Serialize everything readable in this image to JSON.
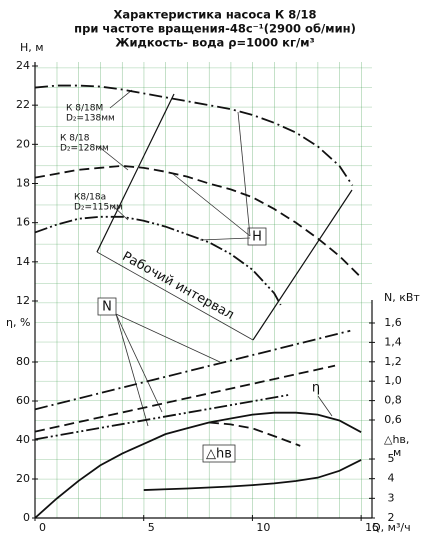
{
  "chart_data": {
    "type": "line",
    "title_lines": [
      "Характеристика насоса К 8/18",
      "при частоте вращения-48с⁻¹(2900 об/мин)",
      "Жидкость- вода ρ=1000 кг/м³"
    ],
    "xlabel": "Q, м³/ч",
    "ylabel": "H, м",
    "y_eta_label": "η, %",
    "y2label": "N, кВт",
    "y3label": "△hв,",
    "y3unit": "м",
    "xlim": [
      0,
      15.5
    ],
    "xticks": [
      0,
      5,
      10,
      15
    ],
    "ylim": [
      12,
      24
    ],
    "yticks": [
      12,
      14,
      16,
      18,
      20,
      22,
      24
    ],
    "y_eta_lim": [
      0,
      80
    ],
    "y_eta_ticks": [
      0,
      20,
      40,
      60,
      80
    ],
    "y2lim": [
      0.6,
      1.6
    ],
    "y2ticks": [
      {
        "value": 0.6,
        "label": "0,6"
      },
      {
        "value": 0.8,
        "label": "0,8"
      },
      {
        "value": 1.0,
        "label": "1,0"
      },
      {
        "value": 1.2,
        "label": "1,2"
      },
      {
        "value": 1.4,
        "label": "1,4"
      },
      {
        "value": 1.6,
        "label": "1,6"
      }
    ],
    "y3lim": [
      2,
      5
    ],
    "y3ticks": [
      2,
      3,
      4,
      5
    ],
    "grid": true,
    "grid_color": "#3a9a4a",
    "series": [
      {
        "name": "К 8/18М",
        "impeller": "D₂=138мм",
        "axis": "y",
        "style": "dashdot",
        "color": "#111",
        "x": [
          0,
          1,
          2,
          3,
          4,
          5,
          6,
          7,
          8,
          9,
          10,
          11,
          12,
          13,
          14,
          14.6
        ],
        "values": [
          22.9,
          23.0,
          23.0,
          22.95,
          22.8,
          22.6,
          22.4,
          22.2,
          22.0,
          21.8,
          21.5,
          21.1,
          20.6,
          19.9,
          18.9,
          17.9
        ]
      },
      {
        "name": "К 8/18",
        "impeller": "D₂=128мм",
        "axis": "y",
        "style": "dash",
        "color": "#111",
        "x": [
          0,
          1,
          2,
          3,
          4,
          5,
          6,
          7,
          8,
          9,
          10,
          11,
          12,
          13,
          14,
          15
        ],
        "values": [
          18.3,
          18.5,
          18.7,
          18.8,
          18.9,
          18.8,
          18.6,
          18.35,
          18.0,
          17.7,
          17.3,
          16.7,
          16.0,
          15.2,
          14.3,
          13.2
        ]
      },
      {
        "name": "К8/18а",
        "impeller": "D₂=115мм",
        "axis": "y",
        "style": "dashdotdot",
        "color": "#111",
        "x": [
          0,
          1,
          2,
          3,
          4,
          5,
          6,
          7,
          8,
          9,
          10,
          11,
          11.3
        ],
        "values": [
          15.5,
          15.9,
          16.2,
          16.3,
          16.3,
          16.1,
          15.8,
          15.4,
          15.0,
          14.4,
          13.6,
          12.4,
          11.8
        ]
      },
      {
        "axis": "y2",
        "style": "dashdot",
        "color": "#111",
        "x": [
          0,
          14.5
        ],
        "values": [
          0.71,
          1.52
        ]
      },
      {
        "axis": "y2",
        "style": "dash",
        "color": "#111",
        "x": [
          0,
          13.8
        ],
        "values": [
          0.48,
          1.16
        ]
      },
      {
        "axis": "y2",
        "style": "dashdotdot",
        "color": "#111",
        "x": [
          0,
          11.7
        ],
        "values": [
          0.4,
          0.86
        ]
      },
      {
        "name": "η",
        "axis": "eta",
        "style": "solid",
        "color": "#111",
        "x": [
          0,
          1,
          2,
          3,
          4,
          5,
          6,
          7,
          8,
          9,
          10,
          11,
          12,
          13,
          14,
          15
        ],
        "values": [
          0,
          10,
          19,
          27,
          33,
          38,
          43,
          46,
          49,
          51,
          53,
          54,
          54,
          53,
          50,
          44
        ]
      },
      {
        "axis": "eta",
        "style": "dash",
        "color": "#111",
        "x": [
          8,
          9,
          10,
          11,
          12.2
        ],
        "values": [
          49,
          48,
          46,
          42,
          37
        ]
      },
      {
        "name": "△hв",
        "axis": "y3",
        "style": "solid",
        "color": "#111",
        "x": [
          5,
          6,
          7,
          8,
          9,
          10,
          11,
          12,
          13,
          14,
          15
        ],
        "values": [
          3.42,
          3.46,
          3.5,
          3.55,
          3.6,
          3.67,
          3.76,
          3.88,
          4.05,
          4.4,
          4.95
        ]
      }
    ],
    "annotations": {
      "H": "H",
      "N": "N",
      "interval": "Рабочий интервал"
    }
  }
}
